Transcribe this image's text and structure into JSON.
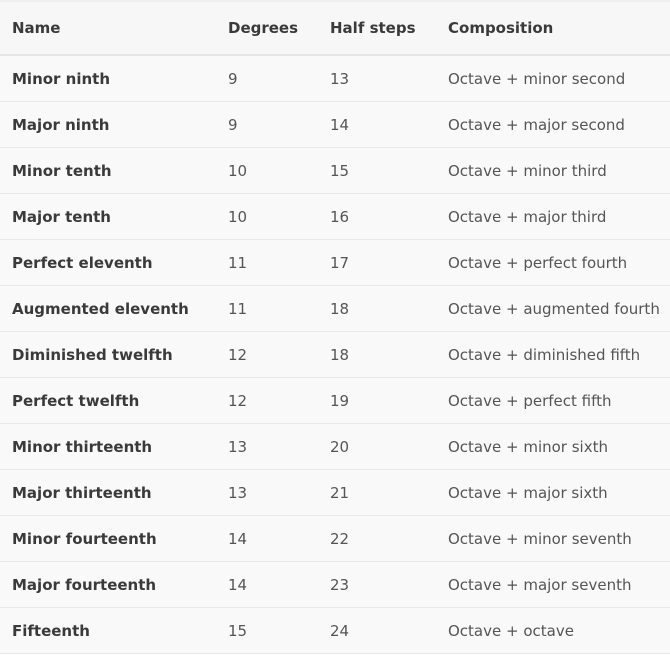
{
  "table": {
    "headers": [
      "Name",
      "Degrees",
      "Half steps",
      "Composition"
    ],
    "rows": [
      [
        "Minor ninth",
        "9",
        "13",
        "Octave + minor second"
      ],
      [
        "Major ninth",
        "9",
        "14",
        "Octave + major second"
      ],
      [
        "Minor tenth",
        "10",
        "15",
        "Octave + minor third"
      ],
      [
        "Major tenth",
        "10",
        "16",
        "Octave + major third"
      ],
      [
        "Perfect eleventh",
        "11",
        "17",
        "Octave + perfect fourth"
      ],
      [
        "Augmented eleventh",
        "11",
        "18",
        "Octave + augmented fourth"
      ],
      [
        "Diminished twelfth",
        "12",
        "18",
        "Octave + diminished fifth"
      ],
      [
        "Perfect twelfth",
        "12",
        "19",
        "Octave + perfect fifth"
      ],
      [
        "Minor thirteenth",
        "13",
        "20",
        "Octave + minor sixth"
      ],
      [
        "Major thirteenth",
        "13",
        "21",
        "Octave + major sixth"
      ],
      [
        "Minor fourteenth",
        "14",
        "22",
        "Octave + minor seventh"
      ],
      [
        "Major fourteenth",
        "14",
        "23",
        "Octave + major seventh"
      ],
      [
        "Fifteenth",
        "15",
        "24",
        "Octave + octave"
      ]
    ]
  }
}
